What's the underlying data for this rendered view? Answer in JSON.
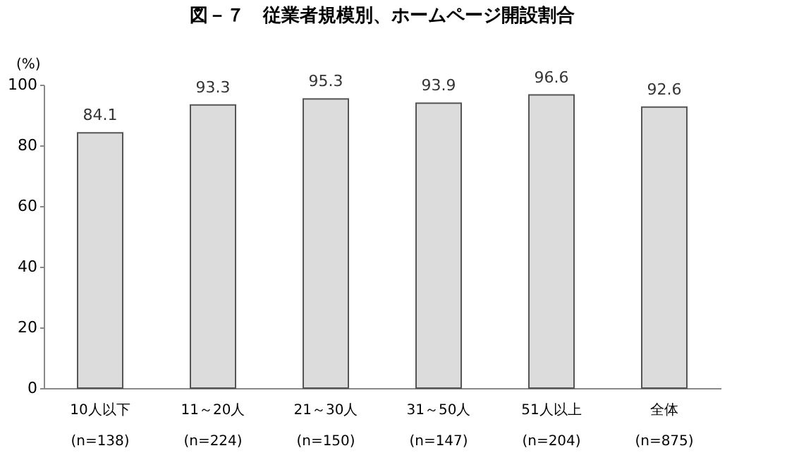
{
  "chart_data": {
    "type": "bar",
    "title": "図－７　従業者規模別、ホームページ開設割合",
    "ylabel": "(%)",
    "categories": [
      "10人以下\n(n=138)",
      "11～20人\n(n=224)",
      "21～30人\n(n=150)",
      "31～50人\n(n=147)",
      "51人以上\n(n=204)",
      "全体\n(n=875)"
    ],
    "values": [
      84.1,
      93.3,
      95.3,
      93.9,
      96.6,
      92.6
    ],
    "color": "#dcdcdc",
    "ylim": [
      0,
      100
    ],
    "yticks": [
      0,
      20,
      40,
      60,
      80,
      100
    ],
    "grid": false,
    "data_labels": true
  }
}
